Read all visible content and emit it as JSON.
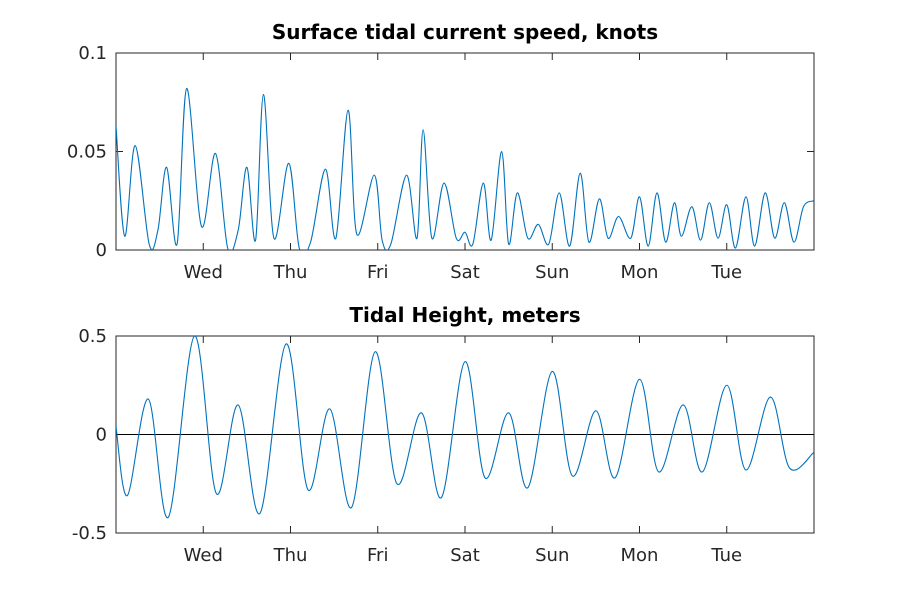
{
  "figure": {
    "accent_color": "#0072BD"
  },
  "chart_data": [
    {
      "type": "line",
      "title": "Surface tidal current speed, knots",
      "xlabel": "",
      "ylabel": "",
      "xlim": [
        0,
        8
      ],
      "ylim": [
        0,
        0.1
      ],
      "yticks": [
        0,
        0.05,
        0.1
      ],
      "ytick_labels": [
        "0",
        "0.05",
        "0.1"
      ],
      "xticks": [
        1,
        2,
        3,
        4,
        5,
        6,
        7
      ],
      "xtick_labels": [
        "Wed",
        "Thu",
        "Fri",
        "Sat",
        "Sun",
        "Mon",
        "Tue"
      ],
      "grid": false,
      "legend": "none",
      "zero_line": false,
      "series": [
        {
          "color": "#0072BD",
          "x": [
            0,
            0.1,
            0.22,
            0.38,
            0.48,
            0.58,
            0.7,
            0.81,
            0.98,
            1.14,
            1.28,
            1.4,
            1.5,
            1.6,
            1.69,
            1.81,
            1.98,
            2.1,
            2.23,
            2.4,
            2.52,
            2.66,
            2.76,
            2.96,
            3.05,
            3.15,
            3.33,
            3.45,
            3.52,
            3.62,
            3.76,
            3.9,
            4.0,
            4.09,
            4.21,
            4.3,
            4.42,
            4.5,
            4.6,
            4.72,
            4.84,
            4.96,
            5.08,
            5.2,
            5.32,
            5.42,
            5.54,
            5.64,
            5.76,
            5.9,
            6.0,
            6.1,
            6.2,
            6.3,
            6.4,
            6.48,
            6.6,
            6.7,
            6.8,
            6.9,
            7.0,
            7.1,
            7.22,
            7.32,
            7.44,
            7.55,
            7.66,
            7.77,
            7.88,
            8.0
          ],
          "y": [
            0.063,
            0.007,
            0.053,
            0.003,
            0.01,
            0.042,
            0.003,
            0.082,
            0.012,
            0.049,
            0.001,
            0.01,
            0.042,
            0.005,
            0.079,
            0.006,
            0.044,
            0.001,
            0.004,
            0.041,
            0.006,
            0.071,
            0.008,
            0.038,
            0.005,
            0.003,
            0.038,
            0.006,
            0.061,
            0.006,
            0.034,
            0.006,
            0.009,
            0.003,
            0.034,
            0.005,
            0.05,
            0.003,
            0.029,
            0.006,
            0.013,
            0.003,
            0.029,
            0.002,
            0.039,
            0.004,
            0.026,
            0.006,
            0.017,
            0.006,
            0.027,
            0.002,
            0.029,
            0.004,
            0.024,
            0.007,
            0.022,
            0.005,
            0.024,
            0.006,
            0.023,
            0.001,
            0.027,
            0.002,
            0.029,
            0.006,
            0.024,
            0.004,
            0.022,
            0.025
          ]
        }
      ]
    },
    {
      "type": "line",
      "title": "Tidal Height, meters",
      "xlabel": "",
      "ylabel": "",
      "xlim": [
        0,
        8
      ],
      "ylim": [
        -0.5,
        0.5
      ],
      "yticks": [
        -0.5,
        0,
        0.5
      ],
      "ytick_labels": [
        "-0.5",
        "0",
        "0.5"
      ],
      "xticks": [
        1,
        2,
        3,
        4,
        5,
        6,
        7
      ],
      "xtick_labels": [
        "Wed",
        "Thu",
        "Fri",
        "Sat",
        "Sun",
        "Mon",
        "Tue"
      ],
      "grid": false,
      "legend": "none",
      "zero_line": true,
      "series": [
        {
          "color": "#0072BD",
          "x": [
            0,
            0.13,
            0.37,
            0.6,
            0.9,
            1.15,
            1.4,
            1.65,
            1.95,
            2.2,
            2.45,
            2.7,
            2.97,
            3.22,
            3.5,
            3.73,
            4.0,
            4.23,
            4.5,
            4.72,
            5.0,
            5.23,
            5.5,
            5.72,
            6.0,
            6.22,
            6.5,
            6.72,
            7.0,
            7.22,
            7.5,
            7.72,
            8.0
          ],
          "y": [
            0.04,
            -0.31,
            0.18,
            -0.42,
            0.5,
            -0.3,
            0.15,
            -0.4,
            0.46,
            -0.28,
            0.13,
            -0.37,
            0.42,
            -0.25,
            0.11,
            -0.32,
            0.37,
            -0.22,
            0.11,
            -0.27,
            0.32,
            -0.21,
            0.12,
            -0.22,
            0.28,
            -0.19,
            0.15,
            -0.19,
            0.25,
            -0.18,
            0.19,
            -0.17,
            -0.09
          ]
        }
      ]
    }
  ]
}
